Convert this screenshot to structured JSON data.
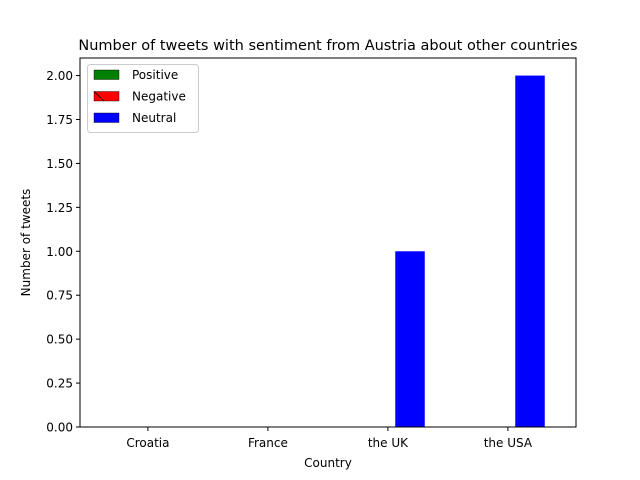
{
  "chart_data": {
    "type": "bar",
    "title": "Number of tweets with sentiment from Austria about other countries",
    "xlabel": "Country",
    "ylabel": "Number of tweets",
    "categories": [
      "Croatia",
      "France",
      "the UK",
      "the USA"
    ],
    "series": [
      {
        "name": "Positive",
        "values": [
          0,
          0,
          0,
          0
        ],
        "color": "#008000"
      },
      {
        "name": "Negative",
        "values": [
          0,
          0,
          0,
          0
        ],
        "color": "#ff0000"
      },
      {
        "name": "Neutral",
        "values": [
          0,
          0,
          1,
          2
        ],
        "color": "#0000ff"
      }
    ],
    "ylim": [
      0,
      2.1
    ],
    "yticks": [
      "0.00",
      "0.25",
      "0.50",
      "0.75",
      "1.00",
      "1.25",
      "1.50",
      "1.75",
      "2.00"
    ],
    "grid": false,
    "legend_position": "top-left"
  }
}
